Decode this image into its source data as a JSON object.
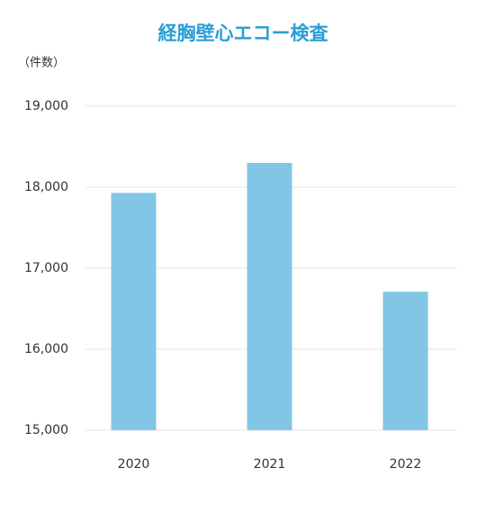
{
  "chart_data": {
    "type": "bar",
    "title": "経胸壁心エコー検査",
    "y_label": "（件数）",
    "categories": [
      "2020",
      "2021",
      "2022"
    ],
    "values": [
      17930,
      18300,
      16710
    ],
    "color": "#82c6e6",
    "ylim": [
      15000,
      19000
    ],
    "yticks": [
      {
        "value": 15000,
        "label": "15,000"
      },
      {
        "value": 16000,
        "label": "16,000"
      },
      {
        "value": 17000,
        "label": "17,000"
      },
      {
        "value": 18000,
        "label": "18,000"
      },
      {
        "value": 19000,
        "label": "19,000"
      }
    ],
    "grid": true
  }
}
